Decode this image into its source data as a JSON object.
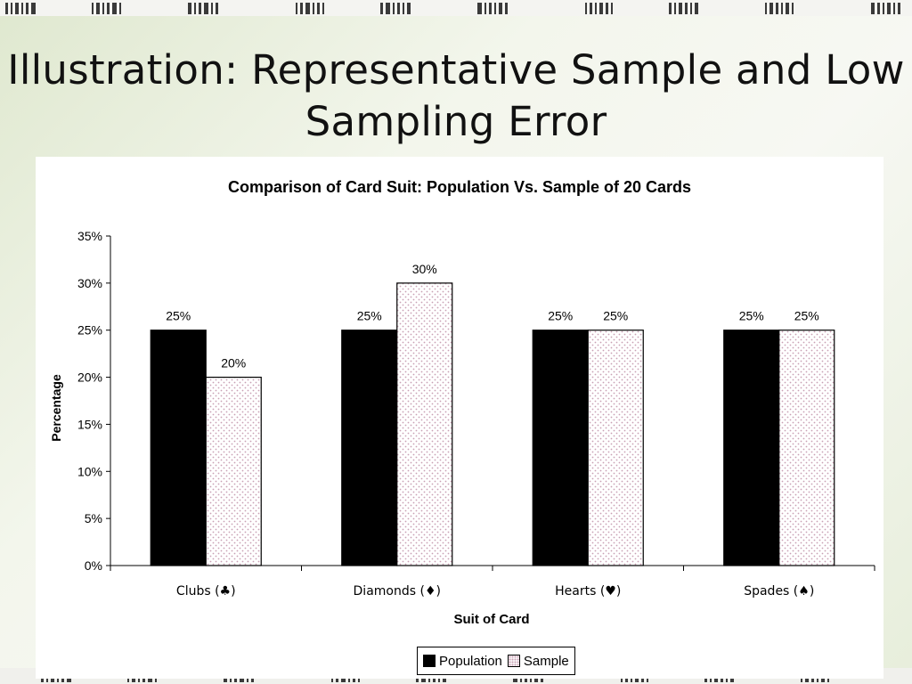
{
  "slide": {
    "title": "Illustration: Representative Sample and Low Sampling Error"
  },
  "chart_data": {
    "type": "bar",
    "title": "Comparison of Card Suit: Population Vs. Sample of 20 Cards",
    "xlabel": "Suit of Card",
    "ylabel": "Percentage",
    "categories": [
      "Clubs (♣)",
      "Diamonds (♦)",
      "Hearts (♥)",
      "Spades (♠)"
    ],
    "series": [
      {
        "name": "Population",
        "values": [
          25,
          25,
          25,
          25
        ],
        "labels": [
          "25%",
          "25%",
          "25%",
          "25%"
        ],
        "color": "#000000"
      },
      {
        "name": "Sample",
        "values": [
          20,
          30,
          25,
          25
        ],
        "labels": [
          "20%",
          "30%",
          "25%",
          "25%"
        ],
        "color": "#ffffff",
        "pattern_color": "#c9a0b4"
      }
    ],
    "ylim": [
      0,
      35
    ],
    "yticks": [
      "0%",
      "5%",
      "10%",
      "15%",
      "20%",
      "25%",
      "30%",
      "35%"
    ],
    "grid": false,
    "legend_position": "bottom"
  }
}
